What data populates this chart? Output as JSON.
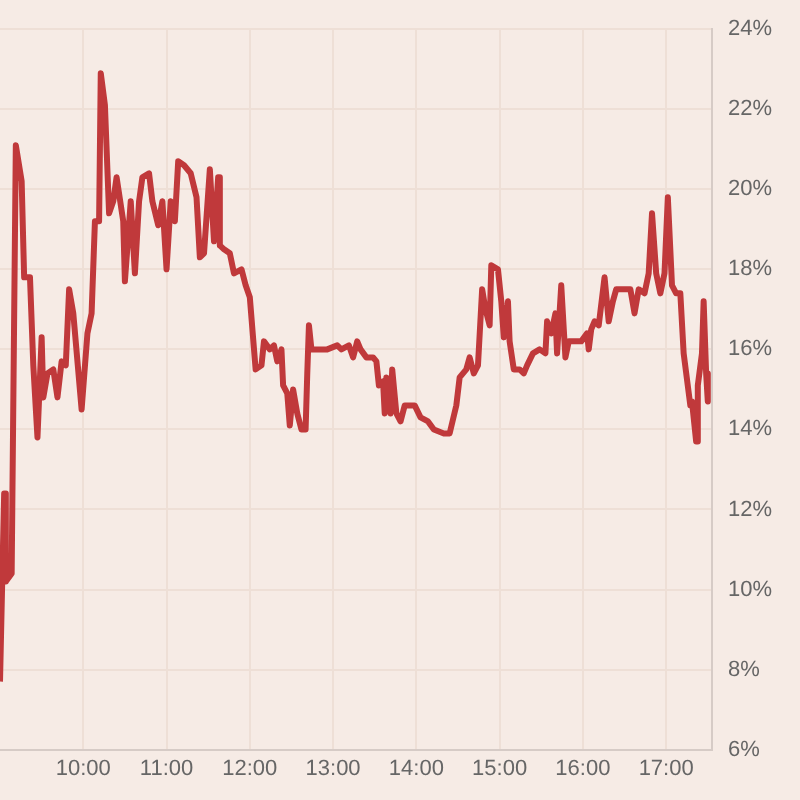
{
  "chart_data": {
    "type": "line",
    "color": "#c0393b",
    "grid": true,
    "x": [
      9.0,
      9.02,
      9.05,
      9.07,
      9.14,
      9.19,
      9.26,
      9.29,
      9.36,
      9.4,
      9.45,
      9.5,
      9.52,
      9.57,
      9.64,
      9.69,
      9.74,
      9.79,
      9.83,
      9.88,
      9.98,
      10.05,
      10.1,
      10.14,
      10.19,
      10.21,
      10.26,
      10.31,
      10.36,
      10.4,
      10.48,
      10.5,
      10.57,
      10.62,
      10.67,
      10.71,
      10.79,
      10.83,
      10.9,
      10.95,
      11.0,
      11.05,
      11.1,
      11.14,
      11.21,
      11.29,
      11.36,
      11.4,
      11.45,
      11.52,
      11.57,
      11.62,
      11.64,
      11.69,
      11.76,
      11.81,
      11.9,
      11.95,
      12.0,
      12.07,
      12.14,
      12.17,
      12.24,
      12.29,
      12.33,
      12.38,
      12.4,
      12.45,
      12.48,
      12.52,
      12.57,
      12.62,
      12.67,
      12.69,
      12.71,
      12.74,
      12.93,
      13.05,
      13.1,
      13.19,
      13.24,
      13.29,
      13.33,
      13.4,
      13.48,
      13.52,
      13.55,
      13.6,
      13.62,
      13.64,
      13.69,
      13.71,
      13.76,
      13.81,
      13.86,
      13.93,
      13.98,
      14.05,
      14.14,
      14.21,
      14.33,
      14.4,
      14.48,
      14.52,
      14.6,
      14.64,
      14.69,
      14.74,
      14.79,
      14.83,
      14.88,
      14.9,
      14.98,
      15.02,
      15.05,
      15.1,
      15.12,
      15.17,
      15.24,
      15.29,
      15.33,
      15.4,
      15.48,
      15.55,
      15.57,
      15.62,
      15.67,
      15.69,
      15.74,
      15.79,
      15.83,
      15.9,
      15.98,
      16.05,
      16.07,
      16.1,
      16.14,
      16.19,
      16.26,
      16.31,
      16.36,
      16.4,
      16.48,
      16.57,
      16.62,
      16.67,
      16.74,
      16.79,
      16.83,
      16.88,
      16.93,
      16.98,
      17.02,
      17.07,
      17.12,
      17.17,
      17.21,
      17.29,
      17.31,
      17.36,
      17.38,
      17.43,
      17.45,
      17.48,
      17.5
    ],
    "values": [
      7.7,
      7.7,
      12.4,
      10.2,
      10.4,
      21.1,
      20.2,
      17.8,
      17.8,
      15.6,
      13.8,
      16.3,
      14.8,
      15.4,
      15.5,
      14.8,
      15.7,
      15.6,
      17.5,
      16.9,
      14.5,
      16.4,
      16.9,
      19.2,
      19.2,
      22.9,
      22.1,
      19.4,
      19.7,
      20.3,
      19.2,
      17.7,
      19.7,
      17.9,
      19.7,
      20.3,
      20.4,
      19.7,
      19.1,
      19.7,
      18.0,
      19.7,
      19.2,
      20.7,
      20.6,
      20.4,
      19.8,
      18.3,
      18.4,
      20.5,
      18.7,
      20.3,
      18.6,
      18.5,
      18.4,
      17.9,
      18.0,
      17.6,
      17.3,
      15.5,
      15.6,
      16.2,
      16.0,
      16.1,
      15.7,
      16.0,
      15.1,
      14.9,
      14.1,
      15.0,
      14.4,
      14.0,
      14.0,
      15.4,
      16.6,
      16.0,
      16.0,
      16.1,
      16.0,
      16.1,
      15.8,
      16.2,
      16.0,
      15.8,
      15.8,
      15.7,
      15.1,
      15.2,
      14.4,
      15.3,
      14.4,
      15.5,
      14.4,
      14.2,
      14.6,
      14.6,
      14.6,
      14.3,
      14.2,
      14.0,
      13.9,
      13.9,
      14.6,
      15.3,
      15.5,
      15.8,
      15.4,
      15.6,
      17.5,
      17.0,
      16.6,
      18.1,
      18.0,
      17.2,
      16.3,
      17.2,
      16.2,
      15.5,
      15.5,
      15.4,
      15.6,
      15.9,
      16.0,
      15.9,
      16.7,
      16.4,
      16.9,
      15.9,
      17.6,
      15.8,
      16.2,
      16.2,
      16.2,
      16.4,
      16.0,
      16.5,
      16.7,
      16.6,
      17.8,
      16.7,
      17.2,
      17.5,
      17.5,
      17.5,
      16.9,
      17.5,
      17.4,
      17.9,
      19.4,
      17.9,
      17.4,
      17.9,
      19.8,
      17.6,
      17.4,
      17.4,
      15.9,
      14.6,
      14.7,
      13.7,
      15.1,
      15.9,
      17.2,
      15.4,
      14.7
    ],
    "xlim": [
      9,
      17.55
    ],
    "xticks": [
      {
        "value": 10,
        "label": "10:00"
      },
      {
        "value": 11,
        "label": "11:00"
      },
      {
        "value": 12,
        "label": "12:00"
      },
      {
        "value": 13,
        "label": "13:00"
      },
      {
        "value": 14,
        "label": "14:00"
      },
      {
        "value": 15,
        "label": "15:00"
      },
      {
        "value": 16,
        "label": "16:00"
      },
      {
        "value": 17,
        "label": "17:00"
      }
    ],
    "ylim": [
      6,
      24
    ],
    "yticks": [
      {
        "value": 6,
        "label": "6%"
      },
      {
        "value": 8,
        "label": "8%"
      },
      {
        "value": 10,
        "label": "10%"
      },
      {
        "value": 12,
        "label": "12%"
      },
      {
        "value": 14,
        "label": "14%"
      },
      {
        "value": 16,
        "label": "16%"
      },
      {
        "value": 18,
        "label": "18%"
      },
      {
        "value": 20,
        "label": "20%"
      },
      {
        "value": 22,
        "label": "22%"
      },
      {
        "value": 24,
        "label": "24%"
      }
    ]
  }
}
